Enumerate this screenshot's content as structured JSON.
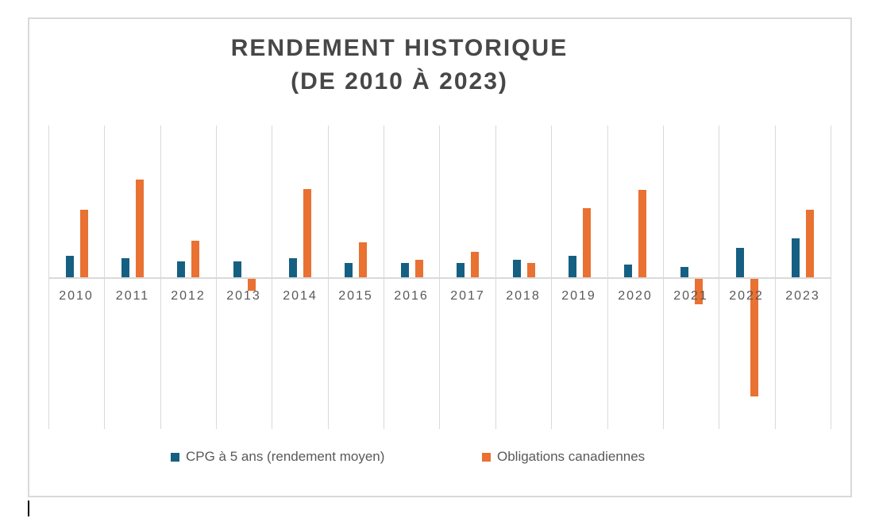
{
  "title": {
    "line1": "RENDEMENT HISTORIQUE",
    "line2": "(DE 2010 À 2023)"
  },
  "legend": [
    {
      "label": "CPG à 5 ans (rendement moyen)",
      "color": "#156082"
    },
    {
      "label": "Obligations canadiennes",
      "color": "#E97132"
    }
  ],
  "colors": {
    "cpg_blue": "#156082",
    "obligations_orange": "#E97132",
    "gridline_gray": "#d9d9d9",
    "title_gray": "#474747",
    "axis_text_gray": "#595959",
    "chart_border_gray": "#d9d9d9"
  },
  "chart_data": {
    "type": "bar",
    "title": "RENDEMENT HISTORIQUE (DE 2010 À 2023)",
    "categories": [
      "2010",
      "2011",
      "2012",
      "2013",
      "2014",
      "2015",
      "2016",
      "2017",
      "2018",
      "2019",
      "2020",
      "2021",
      "2022",
      "2023"
    ],
    "series": [
      {
        "name": "CPG à 5 ans (rendement moyen)",
        "color": "#156082",
        "values": [
          2.1,
          1.9,
          1.6,
          1.6,
          1.9,
          1.4,
          1.4,
          1.4,
          1.7,
          2.1,
          1.3,
          1.0,
          2.9,
          3.9
        ]
      },
      {
        "name": "Obligations canadiennes",
        "color": "#E97132",
        "values": [
          6.7,
          9.7,
          3.6,
          -1.2,
          8.8,
          3.5,
          1.7,
          2.5,
          1.4,
          6.9,
          8.7,
          -2.5,
          -11.7,
          6.7
        ]
      }
    ],
    "xlabel": "",
    "ylabel": "",
    "ylim": [
      -15.2,
      15.2
    ],
    "grid": "vertical category gridlines only, zero baseline shown",
    "legend_position": "bottom",
    "value_labels_shown": false
  }
}
